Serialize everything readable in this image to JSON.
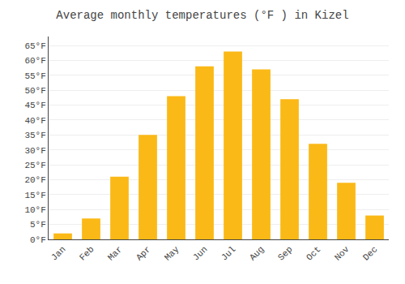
{
  "chart_data": {
    "type": "bar",
    "title": "Average monthly temperatures (°F ) in Kizel",
    "categories": [
      "Jan",
      "Feb",
      "Mar",
      "Apr",
      "May",
      "Jun",
      "Jul",
      "Aug",
      "Sep",
      "Oct",
      "Nov",
      "Dec"
    ],
    "values": [
      2,
      7,
      21,
      35,
      48,
      58,
      63,
      57,
      47,
      32,
      19,
      8
    ],
    "color": "#FBB917",
    "ylim": [
      0,
      68
    ],
    "yticks": [
      {
        "value": 0,
        "label": "0°F"
      },
      {
        "value": 5,
        "label": "5°F"
      },
      {
        "value": 10,
        "label": "10°F"
      },
      {
        "value": 15,
        "label": "15°F"
      },
      {
        "value": 20,
        "label": "20°F"
      },
      {
        "value": 25,
        "label": "25°F"
      },
      {
        "value": 30,
        "label": "30°F"
      },
      {
        "value": 35,
        "label": "35°F"
      },
      {
        "value": 40,
        "label": "40°F"
      },
      {
        "value": 45,
        "label": "45°F"
      },
      {
        "value": 50,
        "label": "50°F"
      },
      {
        "value": 55,
        "label": "55°F"
      },
      {
        "value": 60,
        "label": "60°F"
      },
      {
        "value": 65,
        "label": "65°F"
      }
    ],
    "grid": true
  }
}
